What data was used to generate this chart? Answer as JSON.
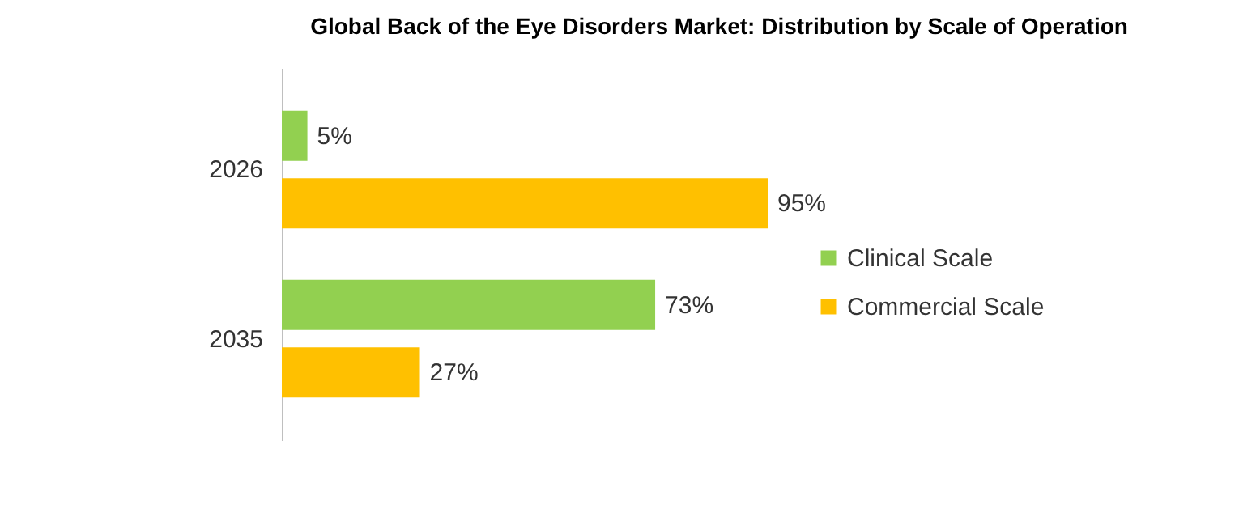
{
  "chart_data": {
    "type": "bar",
    "orientation": "horizontal",
    "title": "Global Back of the Eye Disorders Market: Distribution by Scale of Operation",
    "categories": [
      "2026",
      "2035"
    ],
    "series": [
      {
        "name": "Clinical Scale",
        "color": "#92d050",
        "values": [
          5,
          73
        ],
        "value_labels": [
          "5%",
          "73%"
        ]
      },
      {
        "name": "Commercial Scale",
        "color": "#ffc000",
        "values": [
          95,
          27
        ],
        "value_labels": [
          "95%",
          "27%"
        ]
      }
    ],
    "legend": "right",
    "grid": false
  }
}
